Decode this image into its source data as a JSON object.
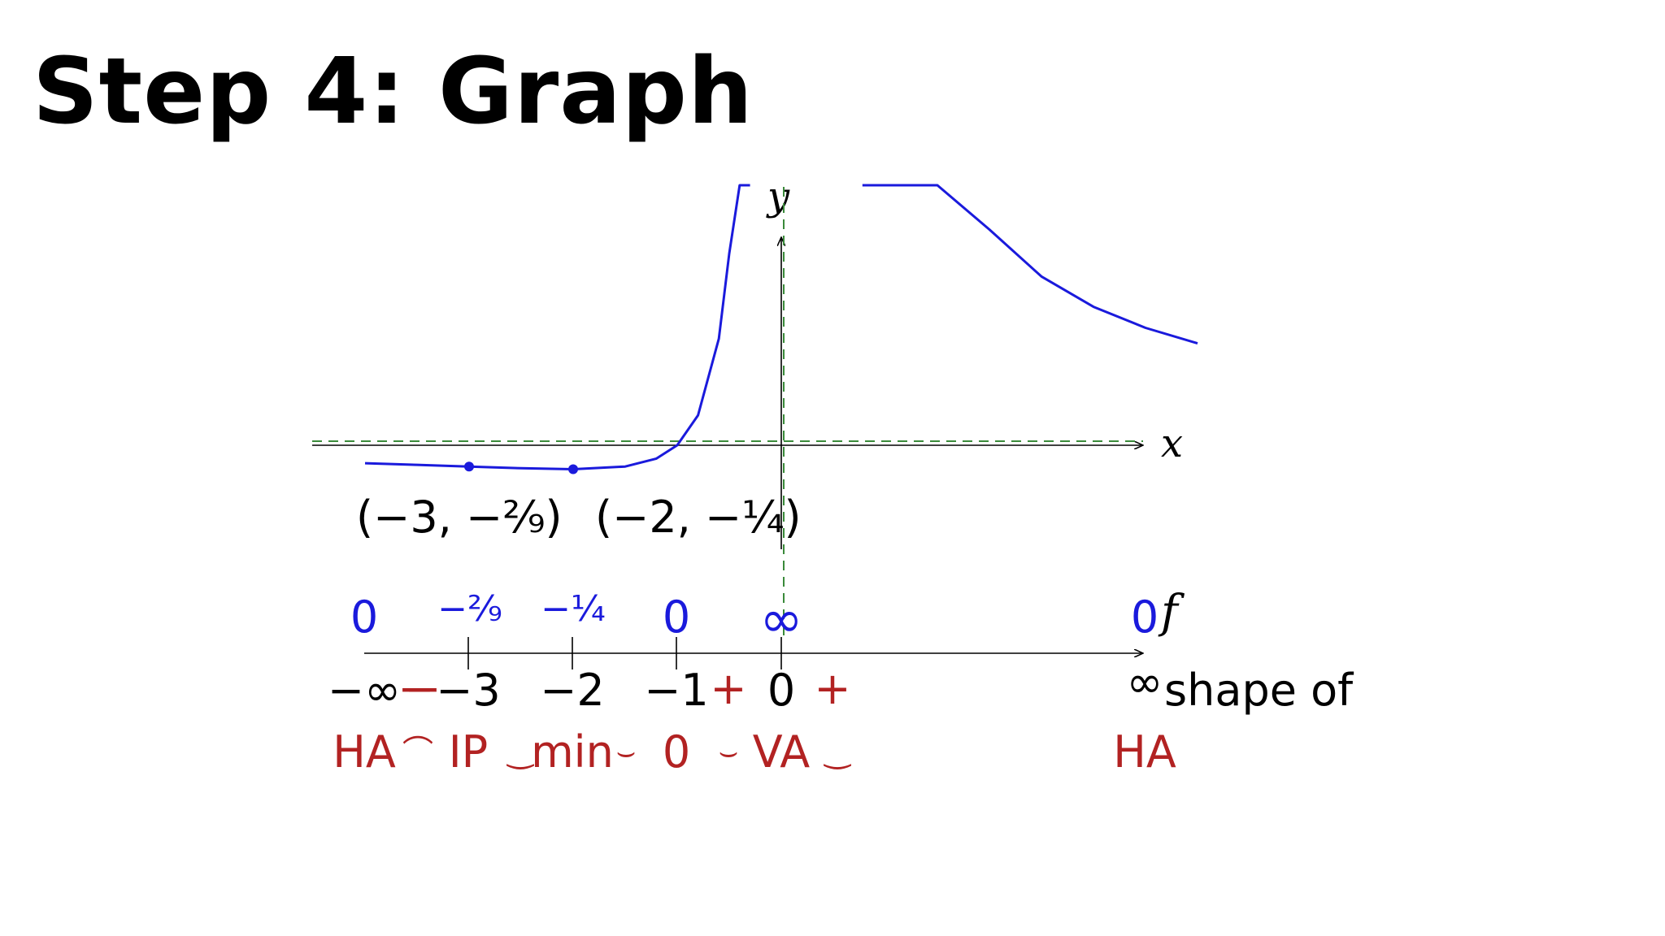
{
  "title": "Step 4: Graph",
  "colors": {
    "curve": "#1a1adc",
    "asymptote": "#3a8a3a",
    "axis": "#000000",
    "value_text": "#1a1adc",
    "sign_text": "#b22222",
    "label_text": "#000000"
  },
  "graph": {
    "x_label": "x",
    "y_label": "y",
    "points": [
      {
        "label": "(−3, −²⁄₉)",
        "x": -3,
        "y": -0.2222
      },
      {
        "label": "(−2, −¹⁄₄)",
        "x": -2,
        "y": -0.25
      }
    ],
    "vertical_asymptote_x": 0,
    "horizontal_asymptote_y": 0
  },
  "chart_data": {
    "type": "line",
    "title": "",
    "xlabel": "x",
    "ylabel": "y",
    "series": [
      {
        "x": [
          -4,
          -3.5,
          -3,
          -2.5,
          -2,
          -1.5,
          -1.2,
          -1,
          -0.8,
          -0.6,
          -0.5,
          -0.4,
          -0.35,
          -0.3
        ],
        "y": [
          -0.1875,
          -0.2041,
          -0.2222,
          -0.24,
          -0.25,
          -0.2222,
          -0.1389,
          0,
          0.3125,
          1.1111,
          2,
          3.75,
          5.3061,
          7.7778
        ]
      },
      {
        "x": [
          0.78,
          0.9,
          1,
          1.25,
          1.5,
          2,
          2.5,
          3,
          3.5,
          4
        ],
        "y": [
          7.5904,
          6.4198,
          5.6,
          4.16,
          3.2889,
          2.25,
          1.76,
          1.4444,
          1.2245,
          1.0625
        ]
      }
    ],
    "asymptotes": {
      "vertical": 0,
      "horizontal": 0
    },
    "marked_points": [
      {
        "x": -3,
        "y": -0.2222
      },
      {
        "x": -2,
        "y": -0.25
      }
    ]
  },
  "sign_chart": {
    "row_labels": {
      "values": "f",
      "shapes": "shape of"
    },
    "points": [
      {
        "x_label": "−∞",
        "value": "0",
        "shape": "HA"
      },
      {
        "x_label": "−3",
        "value": "−²⁄₉",
        "shape": "IP"
      },
      {
        "x_label": "−2",
        "value": "−¹⁄₄",
        "shape": "min"
      },
      {
        "x_label": "−1",
        "value": "0",
        "shape": "0"
      },
      {
        "x_label": "0",
        "value": "∞",
        "shape": "VA"
      },
      {
        "x_label": "∞",
        "value": "0",
        "shape": "HA"
      }
    ],
    "signs": [
      "−",
      "−",
      "+",
      "+"
    ],
    "concavity": [
      "⌒",
      "‿",
      "⌣",
      "⌣",
      "‿"
    ]
  }
}
